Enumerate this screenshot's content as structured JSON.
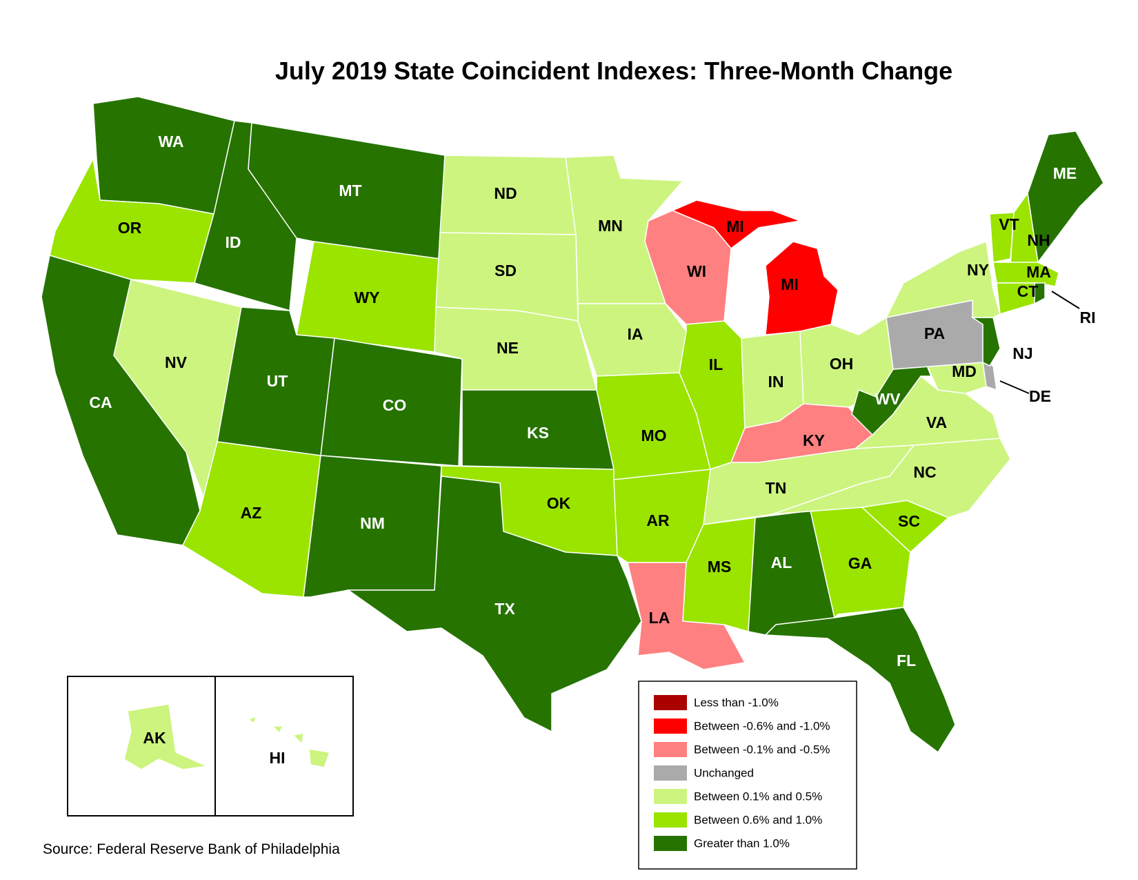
{
  "title": "July 2019 State Coincident Indexes: Three-Month Change",
  "source": "Source: Federal Reserve Bank of Philadelphia",
  "categories": [
    {
      "id": "lt_neg1",
      "label": "Less than -1.0%",
      "color": "#aa0000"
    },
    {
      "id": "neg06_neg10",
      "label": "Between -0.6% and -1.0%",
      "color": "#ff0000"
    },
    {
      "id": "neg01_neg05",
      "label": "Between -0.1% and -0.5%",
      "color": "#ff8080"
    },
    {
      "id": "unchanged",
      "label": "Unchanged",
      "color": "#aaaaaa"
    },
    {
      "id": "pos01_05",
      "label": "Between 0.1% and 0.5%",
      "color": "#ccf47f"
    },
    {
      "id": "pos06_10",
      "label": "Between 0.6% and 1.0%",
      "color": "#9ae400"
    },
    {
      "id": "gt1",
      "label": "Greater than 1.0%",
      "color": "#267300"
    }
  ],
  "states": [
    {
      "abbr": "WA",
      "cat": "gt1"
    },
    {
      "abbr": "OR",
      "cat": "pos06_10"
    },
    {
      "abbr": "CA",
      "cat": "gt1"
    },
    {
      "abbr": "ID",
      "cat": "gt1"
    },
    {
      "abbr": "NV",
      "cat": "pos01_05"
    },
    {
      "abbr": "MT",
      "cat": "gt1"
    },
    {
      "abbr": "WY",
      "cat": "pos06_10"
    },
    {
      "abbr": "UT",
      "cat": "gt1"
    },
    {
      "abbr": "AZ",
      "cat": "pos06_10"
    },
    {
      "abbr": "CO",
      "cat": "gt1"
    },
    {
      "abbr": "NM",
      "cat": "gt1"
    },
    {
      "abbr": "ND",
      "cat": "pos01_05"
    },
    {
      "abbr": "SD",
      "cat": "pos01_05"
    },
    {
      "abbr": "NE",
      "cat": "pos01_05"
    },
    {
      "abbr": "KS",
      "cat": "gt1"
    },
    {
      "abbr": "OK",
      "cat": "pos06_10"
    },
    {
      "abbr": "TX",
      "cat": "gt1"
    },
    {
      "abbr": "MN",
      "cat": "pos01_05"
    },
    {
      "abbr": "IA",
      "cat": "pos01_05"
    },
    {
      "abbr": "MO",
      "cat": "pos06_10"
    },
    {
      "abbr": "AR",
      "cat": "pos06_10"
    },
    {
      "abbr": "LA",
      "cat": "neg01_neg05"
    },
    {
      "abbr": "WI",
      "cat": "neg01_neg05"
    },
    {
      "abbr": "IL",
      "cat": "pos06_10"
    },
    {
      "abbr": "MI",
      "cat": "neg06_neg10"
    },
    {
      "abbr": "IN",
      "cat": "pos01_05"
    },
    {
      "abbr": "OH",
      "cat": "pos01_05"
    },
    {
      "abbr": "KY",
      "cat": "neg01_neg05"
    },
    {
      "abbr": "TN",
      "cat": "pos01_05"
    },
    {
      "abbr": "MS",
      "cat": "pos06_10"
    },
    {
      "abbr": "AL",
      "cat": "gt1"
    },
    {
      "abbr": "GA",
      "cat": "pos06_10"
    },
    {
      "abbr": "FL",
      "cat": "gt1"
    },
    {
      "abbr": "SC",
      "cat": "pos06_10"
    },
    {
      "abbr": "NC",
      "cat": "pos01_05"
    },
    {
      "abbr": "VA",
      "cat": "pos01_05"
    },
    {
      "abbr": "WV",
      "cat": "gt1"
    },
    {
      "abbr": "MD",
      "cat": "pos01_05"
    },
    {
      "abbr": "DE",
      "cat": "unchanged"
    },
    {
      "abbr": "PA",
      "cat": "unchanged"
    },
    {
      "abbr": "NJ",
      "cat": "gt1"
    },
    {
      "abbr": "NY",
      "cat": "pos01_05"
    },
    {
      "abbr": "CT",
      "cat": "pos06_10"
    },
    {
      "abbr": "RI",
      "cat": "gt1"
    },
    {
      "abbr": "MA",
      "cat": "pos06_10"
    },
    {
      "abbr": "VT",
      "cat": "pos06_10"
    },
    {
      "abbr": "NH",
      "cat": "pos06_10"
    },
    {
      "abbr": "ME",
      "cat": "gt1"
    },
    {
      "abbr": "AK",
      "cat": "pos01_05"
    },
    {
      "abbr": "HI",
      "cat": "pos01_05"
    }
  ]
}
